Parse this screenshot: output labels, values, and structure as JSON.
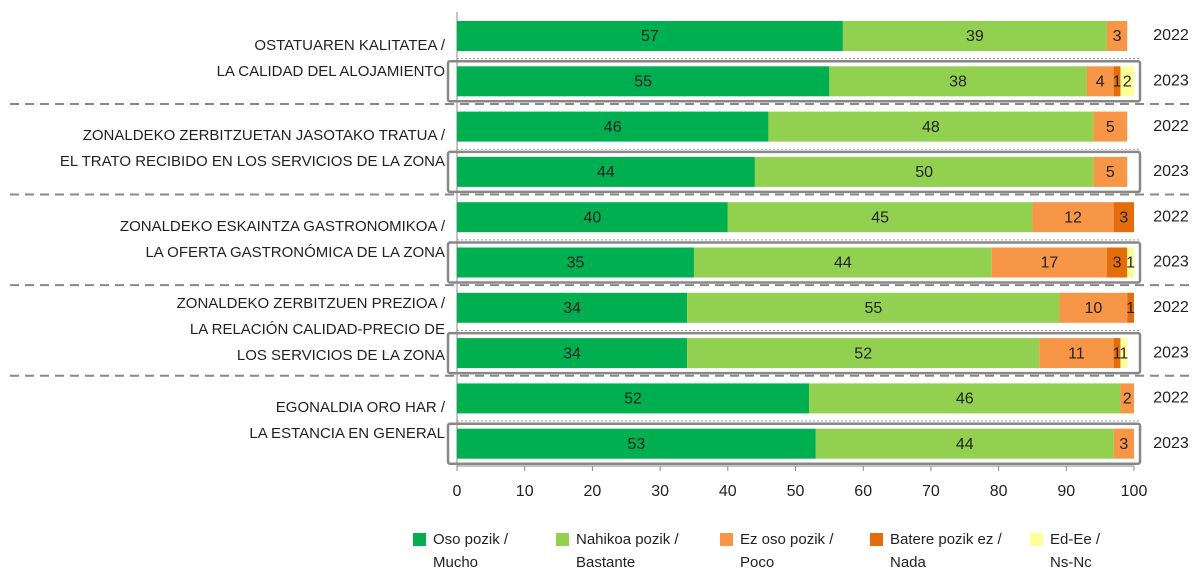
{
  "chart_data": {
    "type": "stacked-barh",
    "groups": [
      "OSTATUAREN KALITATEA /\nLA CALIDAD DEL ALOJAMIENTO",
      "ZONALDEKO ZERBITZUETAN JASOTAKO TRATUA /\nEL TRATO RECIBIDO EN LOS SERVICIOS DE LA ZONA",
      "ZONALDEKO ESKAINTZA GASTRONOMIKOA /\nLA OFERTA GASTRONÓMICA DE LA ZONA",
      "ZONALDEKO ZERBITZUEN PREZIOA /\nLA RELACIÓN CALIDAD-PRECIO DE\nLOS SERVICIOS DE LA ZONA",
      "EGONALDIA ORO HAR /\nLA ESTANCIA EN GENERAL"
    ],
    "categories": [
      "2022",
      "2023",
      "2022",
      "2023",
      "2022",
      "2023",
      "2022",
      "2023",
      "2022",
      "2023"
    ],
    "series": [
      {
        "name": "Oso pozik /\nMucho",
        "color": "#00b050",
        "values": [
          57,
          55,
          46,
          44,
          40,
          35,
          34,
          34,
          52,
          53
        ]
      },
      {
        "name": "Nahikoa pozik /\nBastante",
        "color": "#92d050",
        "values": [
          39,
          38,
          48,
          50,
          45,
          44,
          55,
          52,
          46,
          44
        ]
      },
      {
        "name": "Ez oso pozik /\nPoco",
        "color": "#f79646",
        "values": [
          3,
          4,
          5,
          5,
          12,
          17,
          10,
          11,
          2,
          3
        ]
      },
      {
        "name": "Batere pozik ez /\nNada",
        "color": "#e46c0a",
        "values": [
          null,
          1,
          null,
          null,
          3,
          3,
          1,
          1,
          null,
          null
        ]
      },
      {
        "name": "Ed-Ee /\nNs-Nc",
        "color": "#ffff99",
        "values": [
          null,
          2,
          null,
          null,
          null,
          1,
          null,
          1,
          null,
          null
        ]
      }
    ],
    "xlim": [
      0,
      100
    ],
    "xticks": [
      0,
      10,
      20,
      30,
      40,
      50,
      60,
      70,
      80,
      90,
      100
    ]
  }
}
